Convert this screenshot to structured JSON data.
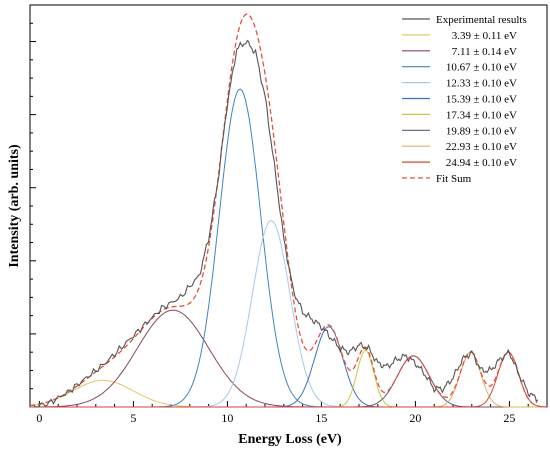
{
  "chart_data": {
    "type": "line",
    "title": "",
    "xlabel": "Energy Loss (eV)",
    "ylabel": "Intensity (arb. units)",
    "xlim": [
      -0.5,
      27
    ],
    "ylim": [
      0,
      1.1
    ],
    "x_ticks": [
      "0",
      "5",
      "10",
      "15",
      "20",
      "25"
    ],
    "legend_position": "top-right",
    "legend": [
      "Experimental results",
      "3.39 ± 0.11 eV",
      "7.11 ± 0.14 eV",
      "10.67 ± 0.10 eV",
      "12.33 ± 0.10 eV",
      "15.39 ± 0.10 eV",
      "17.34 ± 0.10 eV",
      "19.89 ± 0.10 eV",
      "22.93 ± 0.10 eV",
      "24.94 ± 0.10 eV",
      "Fit Sum"
    ],
    "colors": {
      "experimental": "#555555",
      "fit_sum": "#e8503a",
      "peaks": [
        "#e6c46a",
        "#8a4560",
        "#3d85c6",
        "#a9c8ea",
        "#3d6fc6",
        "#c8c845",
        "#6e5573",
        "#e0b060",
        "#d04a3a"
      ]
    },
    "peaks": [
      {
        "name": "3.39 ± 0.11 eV",
        "center": 3.39,
        "amplitude": 0.073,
        "sigma": 1.6
      },
      {
        "name": "7.11 ± 0.14 eV",
        "center": 7.11,
        "amplitude": 0.265,
        "sigma": 1.9
      },
      {
        "name": "10.67 ± 0.10 eV",
        "center": 10.67,
        "amplitude": 0.87,
        "sigma": 1.1
      },
      {
        "name": "12.33 ± 0.10 eV",
        "center": 12.33,
        "amplitude": 0.51,
        "sigma": 1.0
      },
      {
        "name": "15.39 ± 0.10 eV",
        "center": 15.39,
        "amplitude": 0.22,
        "sigma": 0.75
      },
      {
        "name": "17.34 ± 0.10 eV",
        "center": 17.34,
        "amplitude": 0.155,
        "sigma": 0.45
      },
      {
        "name": "19.89 ± 0.10 eV",
        "center": 19.89,
        "amplitude": 0.14,
        "sigma": 0.85
      },
      {
        "name": "22.93 ± 0.10 eV",
        "center": 22.93,
        "amplitude": 0.15,
        "sigma": 0.55
      },
      {
        "name": "24.94 ± 0.10 eV",
        "center": 24.94,
        "amplitude": 0.15,
        "sigma": 0.55
      }
    ],
    "series": [
      {
        "name": "Experimental results",
        "x": [
          -0.3,
          0.5,
          1.5,
          2.5,
          3.5,
          4.5,
          5.5,
          6.5,
          7.5,
          8.5,
          9.0,
          9.5,
          10.0,
          10.5,
          11.0,
          11.5,
          12.0,
          12.5,
          13.0,
          13.5,
          14.0,
          14.5,
          15.0,
          15.5,
          16.0,
          16.5,
          17.0,
          17.5,
          18.0,
          18.5,
          19.0,
          19.5,
          20.0,
          20.5,
          21.0,
          21.5,
          22.0,
          22.5,
          23.0,
          23.5,
          24.0,
          24.5,
          25.0,
          25.5,
          26.0,
          26.5
        ],
        "y": [
          0.0,
          0.01,
          0.04,
          0.08,
          0.12,
          0.17,
          0.22,
          0.27,
          0.3,
          0.36,
          0.46,
          0.62,
          0.83,
          0.98,
          1.0,
          0.97,
          0.85,
          0.66,
          0.46,
          0.32,
          0.26,
          0.24,
          0.22,
          0.19,
          0.16,
          0.15,
          0.17,
          0.16,
          0.12,
          0.11,
          0.13,
          0.14,
          0.12,
          0.09,
          0.05,
          0.05,
          0.08,
          0.13,
          0.15,
          0.1,
          0.1,
          0.13,
          0.15,
          0.09,
          0.04,
          0.02
        ]
      }
    ]
  }
}
